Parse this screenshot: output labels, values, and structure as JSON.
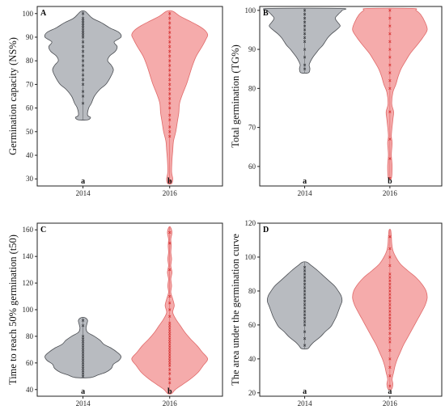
{
  "colors": {
    "g2014_fill": "#b4b7bd",
    "g2014_stroke": "#4a4d52",
    "g2016_fill": "#f4a7a7",
    "g2016_stroke": "#e06a6a",
    "g2014_point": "#2b2d31",
    "g2016_point": "#d42a2a"
  },
  "chart_data": [
    {
      "type": "violin",
      "panel": "A",
      "ylabel": "Germination capacity (NS%)",
      "categories": [
        "2014",
        "2016"
      ],
      "significance": [
        "a",
        "b"
      ],
      "ylim": [
        27,
        103
      ],
      "yticks": [
        30,
        40,
        50,
        60,
        70,
        80,
        90,
        100
      ],
      "series": [
        {
          "range": [
            55,
            101
          ],
          "density": [
            [
              55,
              0.12
            ],
            [
              56,
              0.2
            ],
            [
              57,
              0.12
            ],
            [
              60,
              0.15
            ],
            [
              62,
              0.22
            ],
            [
              65,
              0.3
            ],
            [
              68,
              0.45
            ],
            [
              70,
              0.6
            ],
            [
              73,
              0.72
            ],
            [
              76,
              0.8
            ],
            [
              78,
              0.75
            ],
            [
              80,
              0.65
            ],
            [
              82,
              0.7
            ],
            [
              84,
              0.85
            ],
            [
              86,
              0.9
            ],
            [
              88,
              0.82
            ],
            [
              90,
              1.0
            ],
            [
              92,
              0.95
            ],
            [
              94,
              0.7
            ],
            [
              96,
              0.5
            ],
            [
              98,
              0.25
            ],
            [
              100,
              0.12
            ],
            [
              101,
              0.05
            ]
          ],
          "points": [
            62,
            65,
            67,
            70,
            72,
            74,
            76,
            78,
            80,
            82,
            84,
            86,
            88,
            90,
            91,
            92,
            93,
            94,
            95,
            96,
            97,
            98,
            100
          ]
        },
        {
          "range": [
            28,
            101
          ],
          "density": [
            [
              28,
              0.05
            ],
            [
              30,
              0.08
            ],
            [
              33,
              0.05
            ],
            [
              38,
              0.06
            ],
            [
              42,
              0.08
            ],
            [
              46,
              0.1
            ],
            [
              50,
              0.16
            ],
            [
              54,
              0.2
            ],
            [
              58,
              0.24
            ],
            [
              62,
              0.26
            ],
            [
              66,
              0.34
            ],
            [
              70,
              0.44
            ],
            [
              74,
              0.52
            ],
            [
              78,
              0.6
            ],
            [
              82,
              0.7
            ],
            [
              86,
              0.85
            ],
            [
              89,
              0.95
            ],
            [
              91,
              1.0
            ],
            [
              93,
              0.92
            ],
            [
              95,
              0.74
            ],
            [
              97,
              0.5
            ],
            [
              99,
              0.26
            ],
            [
              101,
              0.08
            ]
          ],
          "points": [
            29,
            48,
            50,
            52,
            55,
            57,
            60,
            62,
            64,
            66,
            68,
            70,
            72,
            74,
            76,
            78,
            80,
            82,
            84,
            86,
            88,
            90,
            92,
            94,
            96,
            98,
            100
          ]
        }
      ]
    },
    {
      "type": "violin",
      "panel": "B",
      "ylabel": "Total germination (TG%)",
      "categories": [
        "2014",
        "2016"
      ],
      "significance": [
        "a",
        "b"
      ],
      "ylim": [
        55,
        101
      ],
      "yticks": [
        60,
        70,
        80,
        90,
        100
      ],
      "series": [
        {
          "range": [
            84,
            100.5
          ],
          "density": [
            [
              84,
              0.1
            ],
            [
              85,
              0.14
            ],
            [
              86,
              0.12
            ],
            [
              87,
              0.16
            ],
            [
              88,
              0.22
            ],
            [
              89,
              0.3
            ],
            [
              90,
              0.38
            ],
            [
              91,
              0.48
            ],
            [
              92,
              0.55
            ],
            [
              93,
              0.62
            ],
            [
              94,
              0.72
            ],
            [
              95,
              0.85
            ],
            [
              96,
              0.95
            ],
            [
              97,
              0.88
            ],
            [
              98,
              0.82
            ],
            [
              99,
              0.9
            ],
            [
              100,
              1.0
            ],
            [
              100.5,
              0.95
            ]
          ],
          "points": [
            85,
            86,
            88,
            90,
            92,
            93,
            94,
            95,
            96,
            97,
            98,
            99,
            100
          ]
        },
        {
          "range": [
            57,
            100.5
          ],
          "density": [
            [
              57,
              0.04
            ],
            [
              60,
              0.06
            ],
            [
              63,
              0.04
            ],
            [
              66,
              0.06
            ],
            [
              68,
              0.04
            ],
            [
              72,
              0.08
            ],
            [
              74,
              0.1
            ],
            [
              76,
              0.05
            ],
            [
              79,
              0.08
            ],
            [
              81,
              0.16
            ],
            [
              83,
              0.22
            ],
            [
              85,
              0.3
            ],
            [
              87,
              0.42
            ],
            [
              89,
              0.55
            ],
            [
              91,
              0.72
            ],
            [
              93,
              0.88
            ],
            [
              95,
              1.0
            ],
            [
              97,
              0.94
            ],
            [
              99,
              0.82
            ],
            [
              100,
              0.7
            ],
            [
              100.5,
              0.6
            ]
          ],
          "points": [
            57,
            62,
            67,
            74,
            80,
            82,
            84,
            86,
            88,
            90,
            92,
            94,
            96,
            98,
            100
          ]
        }
      ]
    },
    {
      "type": "violin",
      "panel": "C",
      "ylabel": "Time to reach 50% germination (t50)",
      "categories": [
        "2014",
        "2016"
      ],
      "significance": [
        "a",
        "b"
      ],
      "ylim": [
        35,
        165
      ],
      "yticks": [
        40,
        60,
        80,
        100,
        120,
        140,
        160
      ],
      "series": [
        {
          "range": [
            49,
            94
          ],
          "density": [
            [
              49,
              0.2
            ],
            [
              51,
              0.4
            ],
            [
              53,
              0.6
            ],
            [
              56,
              0.75
            ],
            [
              59,
              0.8
            ],
            [
              62,
              0.95
            ],
            [
              65,
              1.0
            ],
            [
              68,
              0.9
            ],
            [
              71,
              0.75
            ],
            [
              74,
              0.55
            ],
            [
              77,
              0.45
            ],
            [
              80,
              0.3
            ],
            [
              83,
              0.12
            ],
            [
              86,
              0.08
            ],
            [
              89,
              0.1
            ],
            [
              92,
              0.12
            ],
            [
              94,
              0.05
            ]
          ],
          "points": [
            50,
            52,
            54,
            56,
            58,
            60,
            62,
            64,
            66,
            68,
            70,
            72,
            74,
            76,
            78,
            80,
            88,
            92
          ]
        },
        {
          "range": [
            37,
            162
          ],
          "density": [
            [
              37,
              0.05
            ],
            [
              40,
              0.15
            ],
            [
              44,
              0.35
            ],
            [
              48,
              0.55
            ],
            [
              53,
              0.75
            ],
            [
              58,
              0.88
            ],
            [
              63,
              1.0
            ],
            [
              68,
              0.86
            ],
            [
              73,
              0.72
            ],
            [
              78,
              0.55
            ],
            [
              83,
              0.4
            ],
            [
              88,
              0.28
            ],
            [
              93,
              0.16
            ],
            [
              98,
              0.08
            ],
            [
              103,
              0.12
            ],
            [
              108,
              0.08
            ],
            [
              113,
              0.03
            ],
            [
              118,
              0.05
            ],
            [
              123,
              0.03
            ],
            [
              128,
              0.06
            ],
            [
              133,
              0.03
            ],
            [
              138,
              0.05
            ],
            [
              143,
              0.03
            ],
            [
              148,
              0.04
            ],
            [
              153,
              0.03
            ],
            [
              158,
              0.06
            ],
            [
              162,
              0.02
            ]
          ],
          "points": [
            45,
            48,
            52,
            55,
            58,
            60,
            62,
            64,
            66,
            68,
            70,
            72,
            74,
            76,
            78,
            80,
            82,
            84,
            86,
            88,
            90,
            95,
            100,
            105,
            110,
            130,
            150,
            158
          ]
        }
      ]
    },
    {
      "type": "violin",
      "panel": "D",
      "ylabel": "The area under the germination curve",
      "categories": [
        "2014",
        "2016"
      ],
      "significance": [
        "a",
        "a"
      ],
      "ylim": [
        18,
        120
      ],
      "yticks": [
        20,
        40,
        60,
        80,
        100,
        120
      ],
      "series": [
        {
          "range": [
            46,
            97
          ],
          "density": [
            [
              46,
              0.08
            ],
            [
              48,
              0.16
            ],
            [
              50,
              0.25
            ],
            [
              53,
              0.42
            ],
            [
              56,
              0.55
            ],
            [
              59,
              0.7
            ],
            [
              62,
              0.78
            ],
            [
              65,
              0.85
            ],
            [
              68,
              0.9
            ],
            [
              71,
              0.95
            ],
            [
              74,
              1.0
            ],
            [
              77,
              0.98
            ],
            [
              80,
              0.9
            ],
            [
              83,
              0.8
            ],
            [
              86,
              0.65
            ],
            [
              89,
              0.5
            ],
            [
              92,
              0.35
            ],
            [
              95,
              0.18
            ],
            [
              97,
              0.06
            ]
          ],
          "points": [
            48,
            52,
            56,
            60,
            62,
            64,
            66,
            68,
            70,
            72,
            74,
            76,
            78,
            80,
            82,
            84,
            86,
            88,
            90,
            92,
            94
          ]
        },
        {
          "range": [
            22,
            116
          ],
          "density": [
            [
              22,
              0.04
            ],
            [
              25,
              0.08
            ],
            [
              28,
              0.06
            ],
            [
              32,
              0.1
            ],
            [
              36,
              0.14
            ],
            [
              40,
              0.2
            ],
            [
              44,
              0.28
            ],
            [
              48,
              0.36
            ],
            [
              52,
              0.46
            ],
            [
              56,
              0.56
            ],
            [
              60,
              0.66
            ],
            [
              64,
              0.76
            ],
            [
              68,
              0.86
            ],
            [
              72,
              0.95
            ],
            [
              76,
              1.0
            ],
            [
              80,
              0.97
            ],
            [
              84,
              0.86
            ],
            [
              88,
              0.7
            ],
            [
              92,
              0.48
            ],
            [
              96,
              0.28
            ],
            [
              100,
              0.16
            ],
            [
              104,
              0.08
            ],
            [
              108,
              0.05
            ],
            [
              112,
              0.04
            ],
            [
              116,
              0.02
            ]
          ],
          "points": [
            24,
            30,
            35,
            40,
            45,
            50,
            52,
            55,
            58,
            60,
            62,
            64,
            66,
            68,
            70,
            72,
            74,
            76,
            78,
            80,
            82,
            84,
            86,
            88,
            90,
            95,
            100,
            105,
            112
          ]
        }
      ]
    }
  ]
}
